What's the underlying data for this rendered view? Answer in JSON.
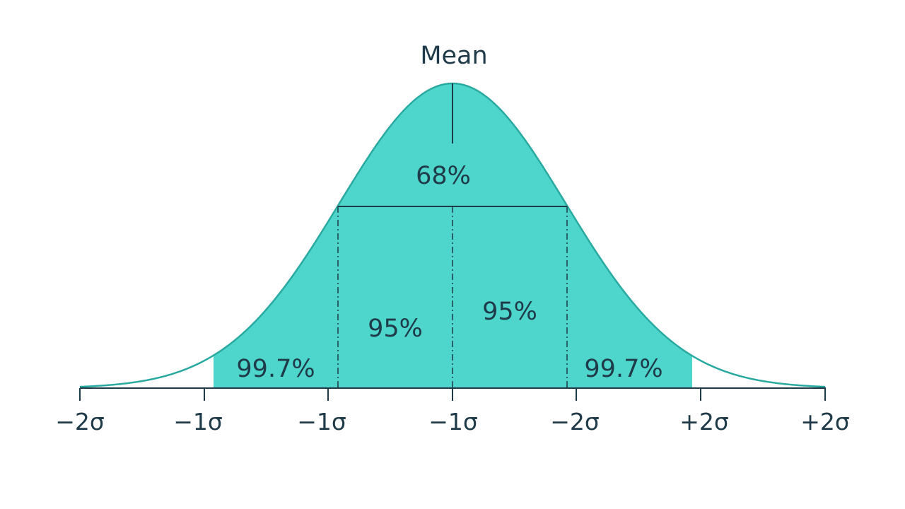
{
  "title": "Mean",
  "regions": {
    "center": "68%",
    "inner_left": "95%",
    "inner_right": "95%",
    "outer_left": "99.7%",
    "outer_right": "99.7%"
  },
  "ticks": [
    "−2σ",
    "−1σ",
    "−1σ",
    "−1σ",
    "−2σ",
    "+2σ",
    "+2σ"
  ],
  "colors": {
    "fill": "#4ed6cc",
    "curve": "#2aa9a1",
    "line": "#1f3a48",
    "text": "#1f3a48"
  }
}
